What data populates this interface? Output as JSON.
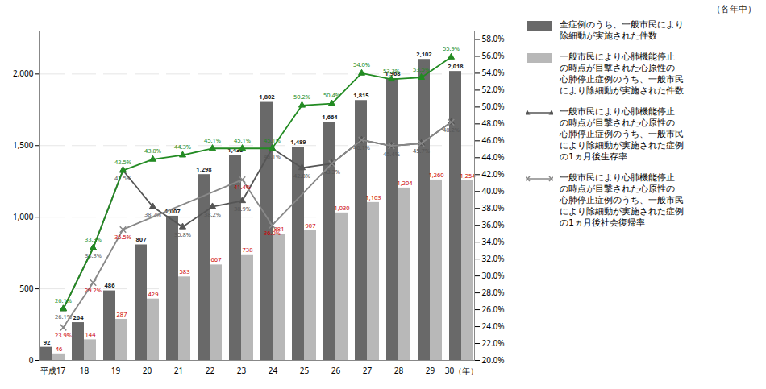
{
  "chart_data": {
    "type": "bar",
    "annotations": [
      "（各年中）"
    ],
    "categories": [
      "平成17",
      "18",
      "19",
      "20",
      "21",
      "22",
      "23",
      "24",
      "25",
      "26",
      "27",
      "28",
      "29",
      "30（年）"
    ],
    "series": [
      {
        "name": "全症例のうち、一般市民により\n除細動が実施された件数",
        "type": "bar",
        "color": "#696969",
        "values": [
          92,
          264,
          486,
          807,
          1007,
          1298,
          1433,
          1802,
          1489,
          1664,
          1815,
          1968,
          2102,
          2018
        ],
        "value_labels": [
          "92",
          "264",
          "486",
          "807",
          "1,007",
          "1,298",
          "1,433",
          "1,802",
          "1,489",
          "1,664",
          "1,815",
          "1,968",
          "2,102",
          "2,018"
        ]
      },
      {
        "name": "一般市民により心肺機能停止\nの時点が目撃された心原性の\n心肺停止症例のうち、一般市民\nにより除細動が実施された件数",
        "type": "bar",
        "color": "#b8b8b8",
        "values": [
          46,
          144,
          287,
          429,
          583,
          667,
          738,
          881,
          907,
          1030,
          1103,
          1204,
          1260,
          1254
        ],
        "value_labels": [
          "46",
          "144",
          "287",
          "429",
          "583",
          "667",
          "738",
          "881",
          "907",
          "1,030",
          "1,103",
          "1,204",
          "1,260",
          "1,254"
        ]
      },
      {
        "name": "一般市民により心肺機能停止\nの時点が目撃された心原性の\n心肺停止症例のうち、一般市民\nにより除細動が実施された症例\nの1ヵ月後生存率",
        "type": "line",
        "axis": "y2",
        "color": "#555555",
        "marker": "triangle",
        "values": [
          26.1,
          33.3,
          42.5,
          38.2,
          35.8,
          38.2,
          38.9,
          45.1,
          42.8,
          43.3,
          46.1,
          45.4,
          45.7,
          48.2
        ],
        "value_labels": [
          "26.1%",
          "33.3%",
          "42.5%",
          "38.2%",
          "35.8%",
          "38.2%",
          "38.9%",
          "45.1%",
          "42.8%",
          "43.3%",
          "46.1%",
          "45.4%",
          "45.7%",
          "48.2%"
        ]
      },
      {
        "type": "line",
        "axis": "y2",
        "color": "#228B22",
        "marker": "triangle",
        "values": [
          26.1,
          33.3,
          42.5,
          43.8,
          44.3,
          45.1,
          45.1,
          45.1,
          50.2,
          50.4,
          54.0,
          53.3,
          53.5,
          55.9
        ],
        "value_labels": [
          "26.1%",
          "33.3%",
          "42.5%",
          "43.8%",
          "44.3%",
          "45.1%",
          "45.1%",
          "45.1%",
          "50.2%",
          "50.4%",
          "54.0%",
          "53.3%",
          "53.5%",
          "55.9%"
        ]
      },
      {
        "name": "一般市民により心肺機能停止\nの時点が目撃された心原性の\n心肺停止症例のうち、一般市民\nにより除細動が実施された症例\nの1ヵ月後社会復帰率",
        "type": "line",
        "axis": "y2",
        "color": "#888888",
        "marker": "x",
        "x": [
          "平成17",
          "18",
          "19",
          "23",
          "24",
          "26",
          "27",
          "28",
          "29",
          "30（年）"
        ],
        "values": [
          23.9,
          29.2,
          35.5,
          41.4,
          36.0,
          43.3,
          46.1,
          45.4,
          45.7,
          48.2
        ],
        "value_labels": [
          "23.9%",
          "29.2%",
          "35.5%",
          "41.4%",
          "36.0%",
          null,
          null,
          null,
          null,
          null
        ]
      }
    ],
    "ylim": [
      0,
      2300
    ],
    "yticks": [
      0,
      500,
      {
        "value": 1000,
        "label": "1,000"
      },
      {
        "value": 1500,
        "label": "1,500"
      },
      {
        "value": 2000,
        "label": "2,000"
      }
    ],
    "y2lim": [
      20.0,
      59.0
    ],
    "y2ticks": [
      {
        "value": 20,
        "label": "20.0%"
      },
      {
        "value": 22,
        "label": "22.0%"
      },
      {
        "value": 24,
        "label": "24.0%"
      },
      {
        "value": 26,
        "label": "26.0%"
      },
      {
        "value": 28,
        "label": "28.0%"
      },
      {
        "value": 30,
        "label": "30.0%"
      },
      {
        "value": 32,
        "label": "32.0%"
      },
      {
        "value": 34,
        "label": "34.0%"
      },
      {
        "value": 36,
        "label": "36.0%"
      },
      {
        "value": 38,
        "label": "38.0%"
      },
      {
        "value": 40,
        "label": "40.0%"
      },
      {
        "value": 42,
        "label": "42.0%"
      },
      {
        "value": 44,
        "label": "44.0%"
      },
      {
        "value": 46,
        "label": "46.0%"
      },
      {
        "value": 48,
        "label": "48.0%"
      },
      {
        "value": 50,
        "label": "50.0%"
      },
      {
        "value": 52,
        "label": "52.0%"
      },
      {
        "value": 54,
        "label": "54.0%"
      },
      {
        "value": 56,
        "label": "56.0%"
      },
      {
        "value": 58,
        "label": "58.0%"
      }
    ],
    "grid": true,
    "data_labels": true,
    "legend": "right"
  }
}
